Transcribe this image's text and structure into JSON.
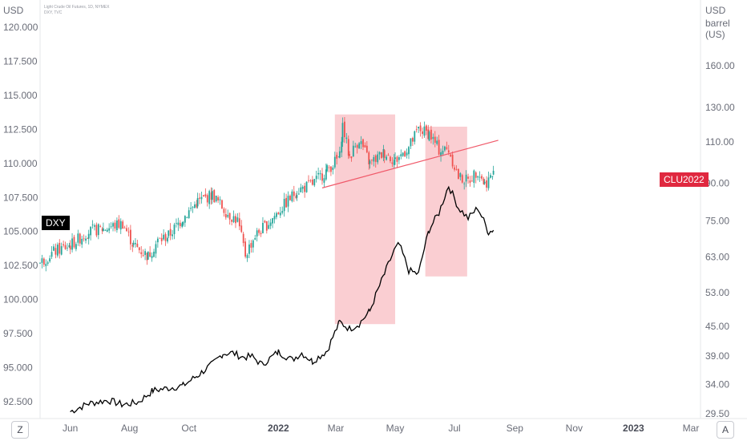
{
  "header": {
    "left_unit": "USD",
    "right_unit_line1": "USD",
    "right_unit_line2": "barrel (US)",
    "legend_line1": "Light Crude Oil Futures, 1D, NYMEX",
    "legend_line2": "DXY, TVC"
  },
  "tags": {
    "dxy": "DXY",
    "clu": "CLU2022"
  },
  "buttons": {
    "left_corner": "Z",
    "right_corner": "A"
  },
  "colors": {
    "up_candle": "#26a69a",
    "down_candle": "#ef5350",
    "oil_line": "#000000",
    "highlight_box": "#f8b4ba",
    "trendline": "#f05a6a",
    "dxy_tag": "#000000",
    "clu_tag": "#e0283f"
  },
  "chart_data": [
    {
      "type": "candlestick",
      "name": "DXY",
      "y_axis": "left",
      "yticks": [
        "120.000",
        "117.500",
        "115.000",
        "112.500",
        "110.000",
        "107.500",
        "105.000",
        "102.500",
        "100.000",
        "97.500",
        "95.000",
        "92.500"
      ],
      "ytick_values": [
        120,
        117.5,
        115,
        112.5,
        110,
        107.5,
        105,
        102.5,
        100,
        97.5,
        95,
        92.5
      ],
      "ylim": [
        91.3,
        121.2
      ],
      "date_range": [
        "2021-05-01",
        "2022-08-15"
      ],
      "points": [
        [
          "2021-05-01",
          102.7
        ],
        [
          "2021-05-15",
          103.5
        ],
        [
          "2021-06-01",
          104.0
        ],
        [
          "2021-06-20",
          105.0
        ],
        [
          "2021-07-05",
          105.2
        ],
        [
          "2021-07-25",
          105.6
        ],
        [
          "2021-08-05",
          104.0
        ],
        [
          "2021-08-20",
          103.2
        ],
        [
          "2021-08-30",
          104.3
        ],
        [
          "2021-09-10",
          104.7
        ],
        [
          "2021-09-25",
          106.0
        ],
        [
          "2021-10-10",
          107.2
        ],
        [
          "2021-10-25",
          107.7
        ],
        [
          "2021-11-10",
          106.3
        ],
        [
          "2021-11-20",
          105.8
        ],
        [
          "2021-11-28",
          103.3
        ],
        [
          "2021-12-08",
          104.7
        ],
        [
          "2021-12-20",
          105.5
        ],
        [
          "2022-01-05",
          106.8
        ],
        [
          "2022-01-20",
          108.0
        ],
        [
          "2022-02-05",
          108.5
        ],
        [
          "2022-02-20",
          109.5
        ],
        [
          "2022-03-05",
          110.5
        ],
        [
          "2022-03-08",
          112.8
        ],
        [
          "2022-03-15",
          110.5
        ],
        [
          "2022-03-25",
          111.8
        ],
        [
          "2022-04-05",
          110.0
        ],
        [
          "2022-04-20",
          110.8
        ],
        [
          "2022-05-01",
          110.2
        ],
        [
          "2022-05-15",
          111.2
        ],
        [
          "2022-05-25",
          112.5
        ],
        [
          "2022-06-05",
          112.2
        ],
        [
          "2022-06-15",
          111.0
        ],
        [
          "2022-06-25",
          111.0
        ],
        [
          "2022-07-05",
          109.0
        ],
        [
          "2022-07-15",
          108.7
        ],
        [
          "2022-07-25",
          109.5
        ],
        [
          "2022-08-01",
          108.5
        ],
        [
          "2022-08-10",
          109.2
        ]
      ]
    },
    {
      "type": "line",
      "name": "CLU2022",
      "y_axis": "right",
      "y_scale": "log",
      "yticks": [
        "160.00",
        "130.00",
        "110.00",
        "90.00",
        "75.00",
        "63.00",
        "53.00",
        "45.00",
        "39.00",
        "34.00",
        "29.50"
      ],
      "ytick_values": [
        160,
        130,
        110,
        90,
        75,
        63,
        53,
        45,
        39,
        34,
        29.5
      ],
      "date_range": [
        "2021-06-01",
        "2022-08-15"
      ],
      "points": [
        [
          "2021-06-01",
          29.8
        ],
        [
          "2021-06-20",
          31.0
        ],
        [
          "2021-07-10",
          31.5
        ],
        [
          "2021-07-25",
          30.8
        ],
        [
          "2021-08-10",
          31.2
        ],
        [
          "2021-08-25",
          33.0
        ],
        [
          "2021-09-10",
          33.4
        ],
        [
          "2021-09-25",
          33.8
        ],
        [
          "2021-10-10",
          35.5
        ],
        [
          "2021-10-25",
          37.5
        ],
        [
          "2021-11-05",
          39.5
        ],
        [
          "2021-11-15",
          39.6
        ],
        [
          "2021-11-25",
          38.8
        ],
        [
          "2021-12-05",
          38.9
        ],
        [
          "2021-12-15",
          37.4
        ],
        [
          "2022-01-01",
          39.8
        ],
        [
          "2022-01-15",
          38.3
        ],
        [
          "2022-01-25",
          39.6
        ],
        [
          "2022-02-05",
          38.0
        ],
        [
          "2022-02-20",
          40.0
        ],
        [
          "2022-03-05",
          46.0
        ],
        [
          "2022-03-15",
          44.5
        ],
        [
          "2022-03-25",
          45.6
        ],
        [
          "2022-04-05",
          48.5
        ],
        [
          "2022-04-20",
          58.0
        ],
        [
          "2022-04-30",
          65.0
        ],
        [
          "2022-05-05",
          67.0
        ],
        [
          "2022-05-15",
          59.0
        ],
        [
          "2022-05-25",
          58.0
        ],
        [
          "2022-06-05",
          72.0
        ],
        [
          "2022-06-15",
          78.0
        ],
        [
          "2022-06-25",
          89.0
        ],
        [
          "2022-07-05",
          80.0
        ],
        [
          "2022-07-15",
          76.0
        ],
        [
          "2022-07-25",
          80.0
        ],
        [
          "2022-08-05",
          71.0
        ],
        [
          "2022-08-10",
          72.0
        ]
      ]
    }
  ],
  "x_axis": {
    "labels": [
      "Jun",
      "Aug",
      "Oct",
      "2022",
      "Mar",
      "May",
      "Jul",
      "Sep",
      "Nov",
      "2023",
      "Mar"
    ],
    "bold": [
      false,
      false,
      false,
      true,
      false,
      false,
      false,
      false,
      false,
      true,
      false
    ],
    "dates": [
      "2021-06-01",
      "2021-08-01",
      "2021-10-01",
      "2022-01-01",
      "2022-03-01",
      "2022-05-01",
      "2022-07-01",
      "2022-09-01",
      "2022-11-01",
      "2023-01-01",
      "2023-03-01"
    ]
  },
  "annotations": {
    "highlight_ranges": [
      {
        "from": "2022-02-28",
        "to": "2022-05-01",
        "dxy_top": 113.6,
        "dxy_bottom": 98.2
      },
      {
        "from": "2022-06-01",
        "to": "2022-07-14",
        "dxy_top": 112.7,
        "dxy_bottom": 101.7
      }
    ],
    "trendline": {
      "from": [
        "2022-02-15",
        108.2
      ],
      "to": [
        "2022-08-15",
        111.7
      ]
    }
  }
}
